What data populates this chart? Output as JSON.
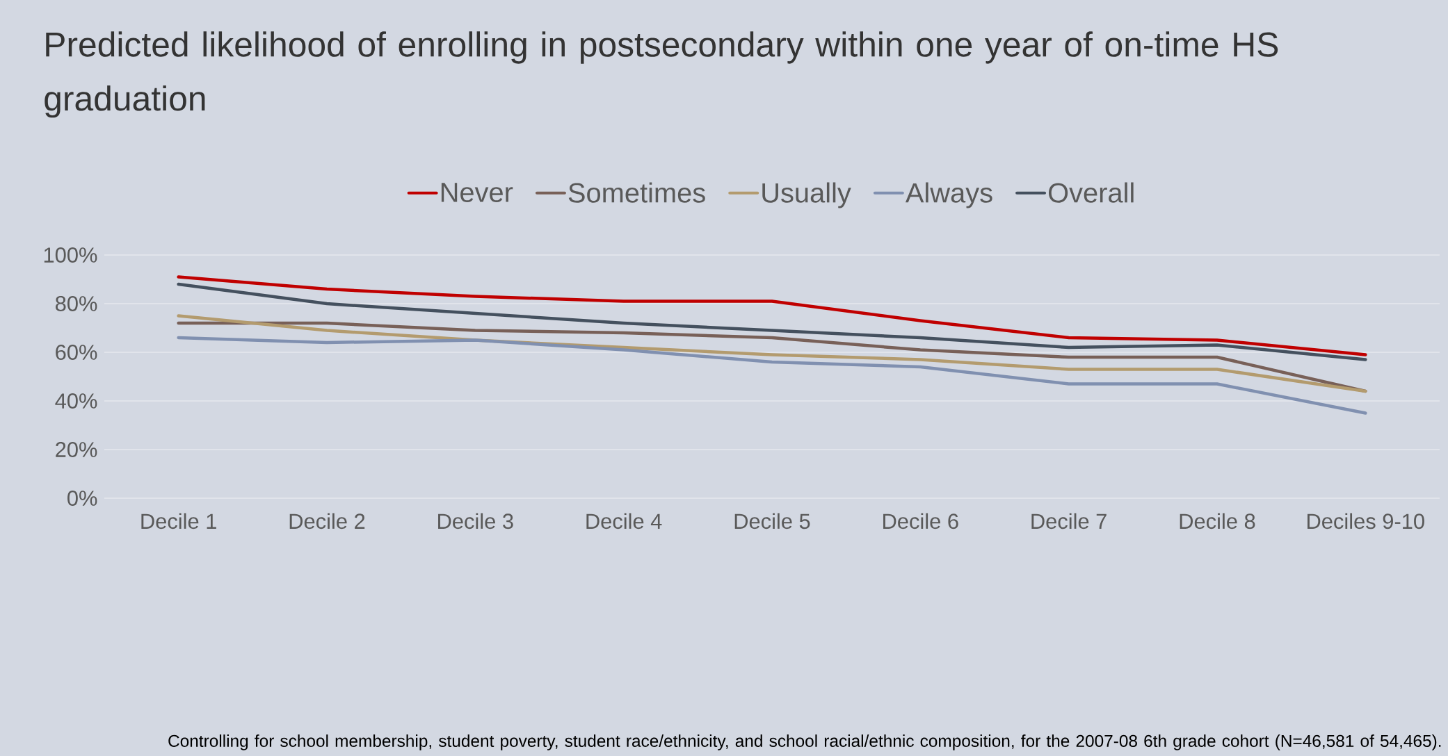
{
  "chart_data": {
    "type": "line",
    "title": "Predicted likelihood of enrolling in postsecondary within one year of on-time HS graduation",
    "categories": [
      "Decile 1",
      "Decile 2",
      "Decile 3",
      "Decile 4",
      "Decile 5",
      "Decile 6",
      "Decile 7",
      "Decile 8",
      "Deciles 9-10"
    ],
    "series": [
      {
        "name": "Never",
        "color": "#c00000",
        "values": [
          91,
          86,
          83,
          81,
          81,
          73,
          66,
          65,
          59
        ]
      },
      {
        "name": "Sometimes",
        "color": "#786058",
        "values": [
          72,
          72,
          69,
          68,
          66,
          61,
          58,
          58,
          44
        ]
      },
      {
        "name": "Usually",
        "color": "#b39b6e",
        "values": [
          75,
          69,
          65,
          62,
          59,
          57,
          53,
          53,
          44
        ]
      },
      {
        "name": "Always",
        "color": "#8090b0",
        "values": [
          66,
          64,
          65,
          61,
          56,
          54,
          47,
          47,
          35
        ]
      },
      {
        "name": "Overall",
        "color": "#44505e",
        "values": [
          88,
          80,
          76,
          72,
          69,
          66,
          62,
          63,
          57
        ]
      }
    ],
    "ylim": [
      0,
      100
    ],
    "yticks": [
      {
        "value": 0,
        "label": "0%"
      },
      {
        "value": 20,
        "label": "20%"
      },
      {
        "value": 40,
        "label": "40%"
      },
      {
        "value": 60,
        "label": "60%"
      },
      {
        "value": 80,
        "label": "80%"
      },
      {
        "value": 100,
        "label": "100%"
      }
    ],
    "grid": "y",
    "legend": "top",
    "annotations": [
      "Controlling for school membership, student poverty, student race/ethnicity, and school racial/ethnic composition, for the 2007-08 6th grade cohort (N=46,581 of 54,465)."
    ]
  }
}
